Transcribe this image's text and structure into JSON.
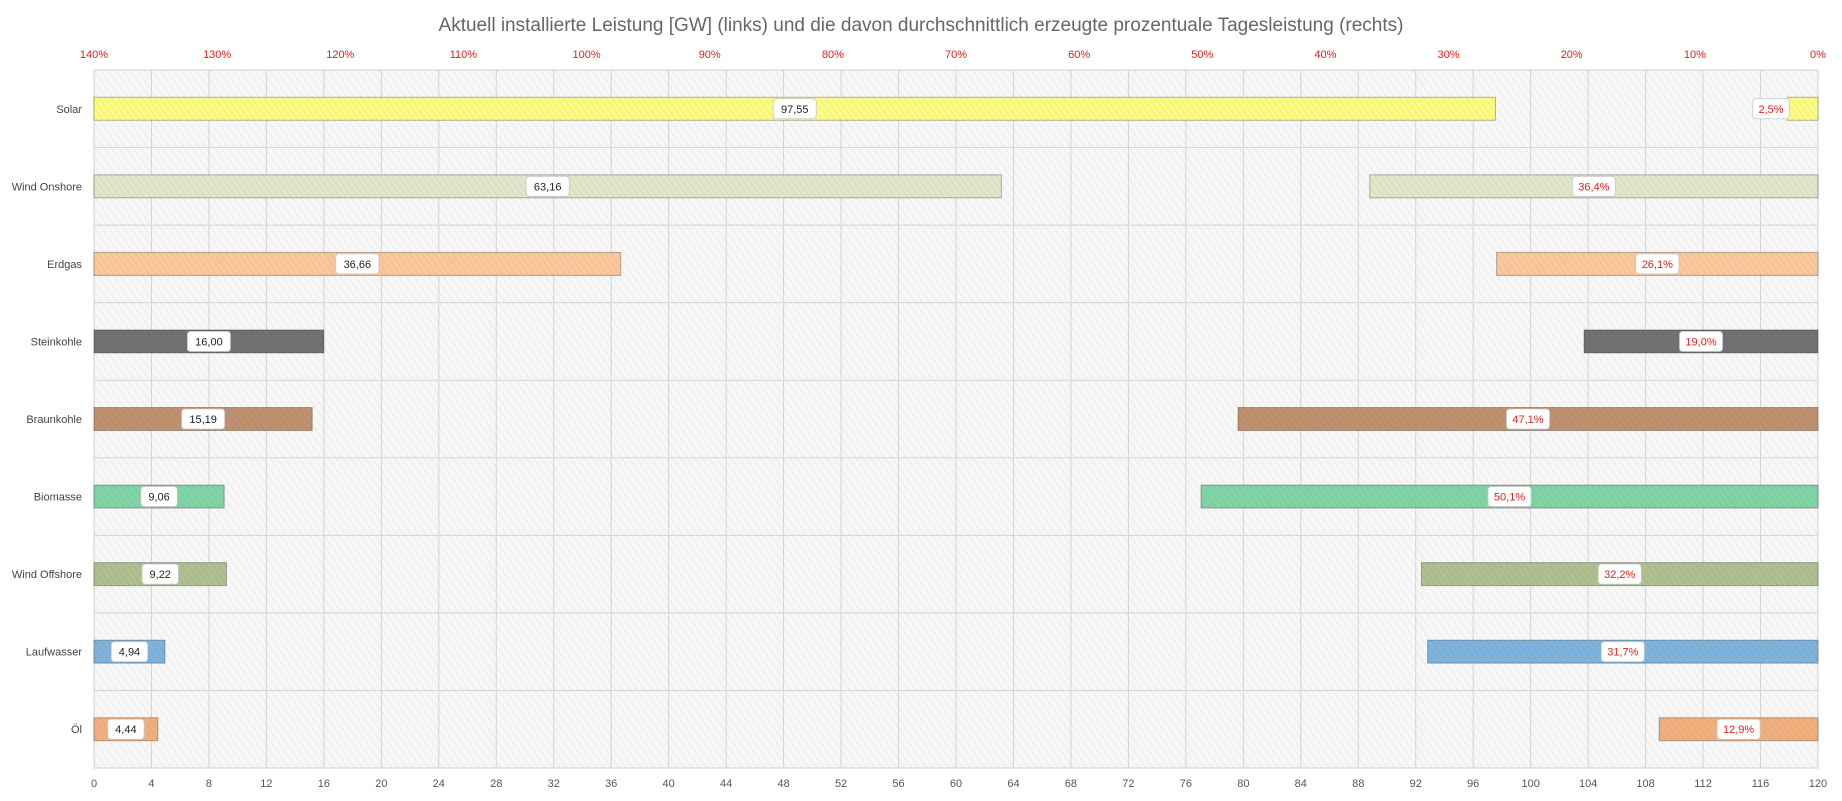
{
  "chart_data": {
    "type": "bar",
    "title": "Aktuell installierte Leistung [GW] (links) und die davon durchschnittlich  erzeugte prozentuale Tagesleistung (rechts)",
    "categories": [
      "Solar",
      "Wind Onshore",
      "Erdgas",
      "Steinkohle",
      "Braunkohle",
      "Biomasse",
      "Wind Offshore",
      "Laufwasser",
      "Öl"
    ],
    "colors": [
      "#fcfc82",
      "#dfe6c9",
      "#fbc69a",
      "#727272",
      "#bf9170",
      "#7fd4a6",
      "#afbf8f",
      "#7fb3db",
      "#f0b07e"
    ],
    "series": [
      {
        "axis": "bottom",
        "values": [
          97.55,
          63.16,
          36.66,
          16.0,
          15.19,
          9.06,
          9.22,
          4.94,
          4.44
        ],
        "labels": [
          "97,55",
          "63,16",
          "36,66",
          "16,00",
          "15,19",
          "9,06",
          "9,22",
          "4,94",
          "4,44"
        ]
      },
      {
        "axis": "top",
        "values": [
          2.5,
          36.4,
          26.1,
          19.0,
          47.1,
          50.1,
          32.2,
          31.7,
          12.9
        ],
        "labels": [
          "2,5%",
          "36,4%",
          "26,1%",
          "19,0%",
          "47,1%",
          "50,1%",
          "32,2%",
          "31,7%",
          "12,9%"
        ]
      }
    ],
    "x_bottom": {
      "min": 0,
      "max": 120,
      "ticks": [
        "0",
        "4",
        "8",
        "12",
        "16",
        "20",
        "24",
        "28",
        "32",
        "36",
        "40",
        "44",
        "48",
        "52",
        "56",
        "60",
        "64",
        "68",
        "72",
        "76",
        "80",
        "84",
        "88",
        "92",
        "96",
        "100",
        "104",
        "108",
        "112",
        "116",
        "120"
      ]
    },
    "x_top": {
      "min": 0,
      "max": 140,
      "reversed": true,
      "ticks": [
        "140%",
        "130%",
        "120%",
        "110%",
        "100%",
        "90%",
        "80%",
        "70%",
        "60%",
        "50%",
        "40%",
        "30%",
        "20%",
        "10%",
        "0%"
      ]
    },
    "grid": true,
    "colors_axis": {
      "top_ticks": "#e02020",
      "bottom_ticks": "#555555",
      "title": "#666666"
    }
  }
}
